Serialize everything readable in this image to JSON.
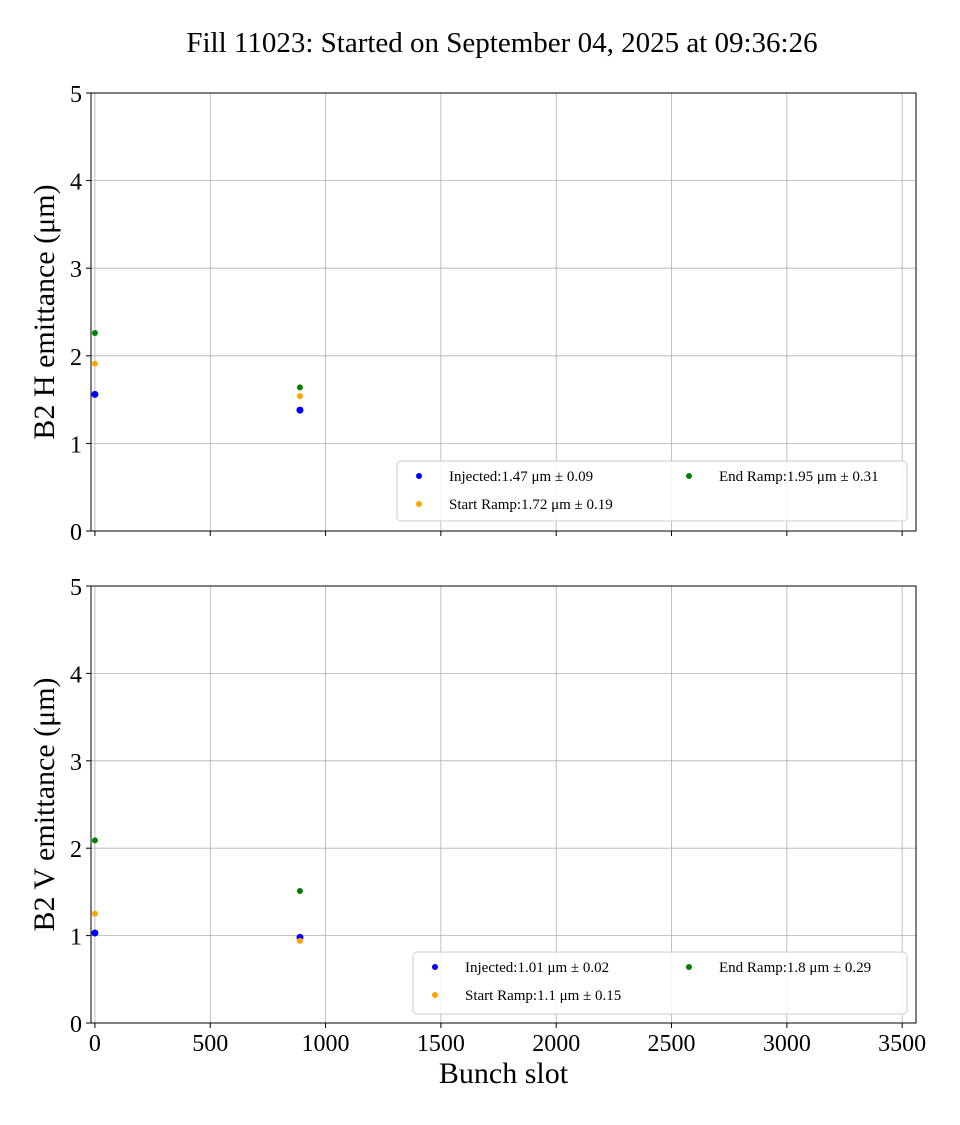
{
  "title": "Fill 11023: Started on September 04, 2025 at 09:36:26",
  "chart_data": [
    {
      "type": "scatter",
      "ylabel": "B2 H emittance (μm)",
      "xlabel": "",
      "xlim": [
        -17,
        3560
      ],
      "ylim": [
        0,
        5
      ],
      "xticks": [
        0,
        500,
        1000,
        1500,
        2000,
        2500,
        3000,
        3500
      ],
      "yticks": [
        0,
        1,
        2,
        3,
        4,
        5
      ],
      "grid": true,
      "legend_placement": "lower-right",
      "series": [
        {
          "name": "Injected:1.47 μm ± 0.09",
          "color": "#0000ff",
          "x": [
            0,
            889
          ],
          "y": [
            1.56,
            1.38
          ]
        },
        {
          "name": "Start Ramp:1.72 μm ± 0.19",
          "color": "#ffa500",
          "x": [
            0,
            889
          ],
          "y": [
            1.91,
            1.54
          ]
        },
        {
          "name": "End Ramp:1.95 μm ± 0.31",
          "color": "#008000",
          "x": [
            0,
            889
          ],
          "y": [
            2.26,
            1.64
          ]
        }
      ]
    },
    {
      "type": "scatter",
      "ylabel": "B2 V emittance (μm)",
      "xlabel": "Bunch slot",
      "xlim": [
        -17,
        3560
      ],
      "ylim": [
        0,
        5
      ],
      "xticks": [
        0,
        500,
        1000,
        1500,
        2000,
        2500,
        3000,
        3500
      ],
      "yticks": [
        0,
        1,
        2,
        3,
        4,
        5
      ],
      "grid": true,
      "legend_placement": "lower-right",
      "series": [
        {
          "name": "Injected:1.01 μm ± 0.02",
          "color": "#0000ff",
          "x": [
            0,
            889
          ],
          "y": [
            1.03,
            0.98
          ]
        },
        {
          "name": "Start Ramp:1.1 μm ± 0.15",
          "color": "#ffa500",
          "x": [
            0,
            889
          ],
          "y": [
            1.25,
            0.94
          ]
        },
        {
          "name": "End Ramp:1.8 μm ± 0.29",
          "color": "#008000",
          "x": [
            0,
            889
          ],
          "y": [
            2.09,
            1.51
          ]
        }
      ]
    }
  ]
}
